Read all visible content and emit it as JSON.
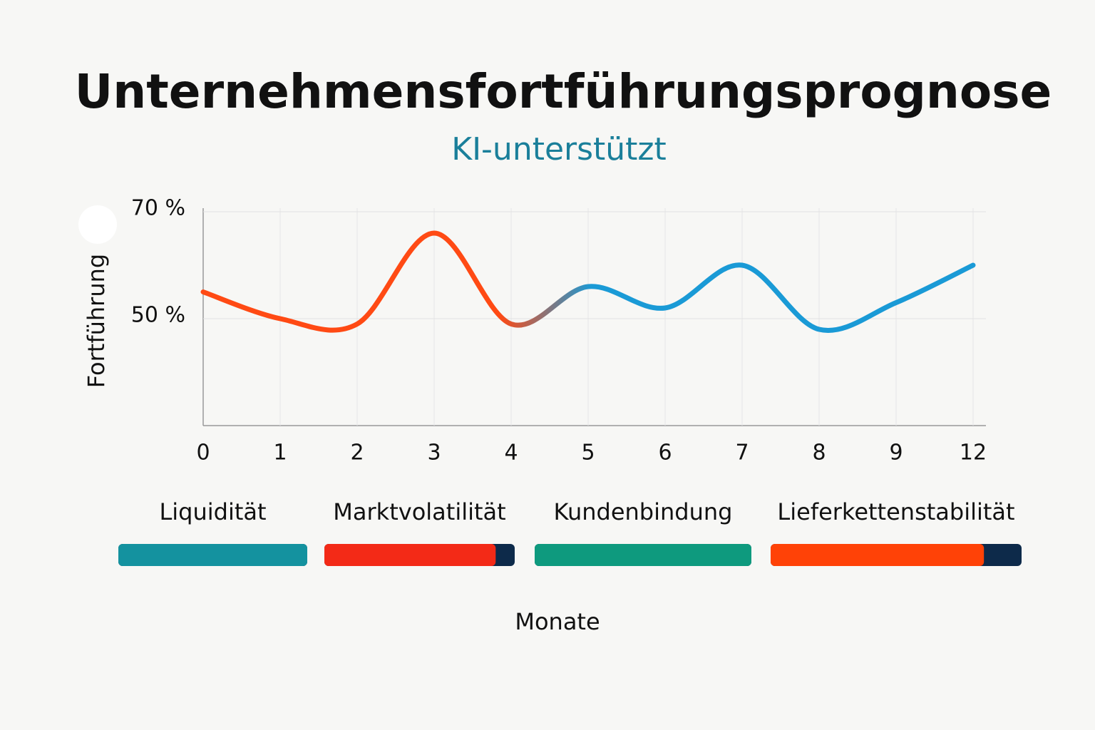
{
  "chart_data": {
    "type": "line",
    "title": "Unternehmensfortführungsprognose",
    "subtitle": "KI-unterstützt",
    "y_label": "Fortführung",
    "x_label": "Monate",
    "categories": [
      "0",
      "1",
      "2",
      "3",
      "4",
      "5",
      "6",
      "7",
      "8",
      "9",
      "12"
    ],
    "series": [
      {
        "values": [
          55,
          50,
          49,
          66,
          49,
          56,
          52,
          60,
          48,
          53,
          60
        ],
        "colors": [
          "#ff4a14",
          "#1a9ad6"
        ]
      }
    ],
    "ylim": [
      30,
      70
    ],
    "yticks": [
      {
        "value": 50,
        "label": "50 %"
      },
      {
        "value": 70,
        "label": "70 %"
      }
    ],
    "grid": true
  },
  "indicators": {
    "xlim": [
      0,
      100
    ],
    "track_color": "#0d2a4a",
    "items": [
      {
        "label": "Liquidität",
        "value": 100,
        "color": "#14929f"
      },
      {
        "label": "Marktvolatilität",
        "value": 90,
        "color": "#f32a17"
      },
      {
        "label": "Kundenbindung",
        "value": 100,
        "color": "#0e9a7e"
      },
      {
        "label": "Lieferkettenstabilität",
        "value": 85,
        "color": "#ff4207"
      }
    ]
  }
}
